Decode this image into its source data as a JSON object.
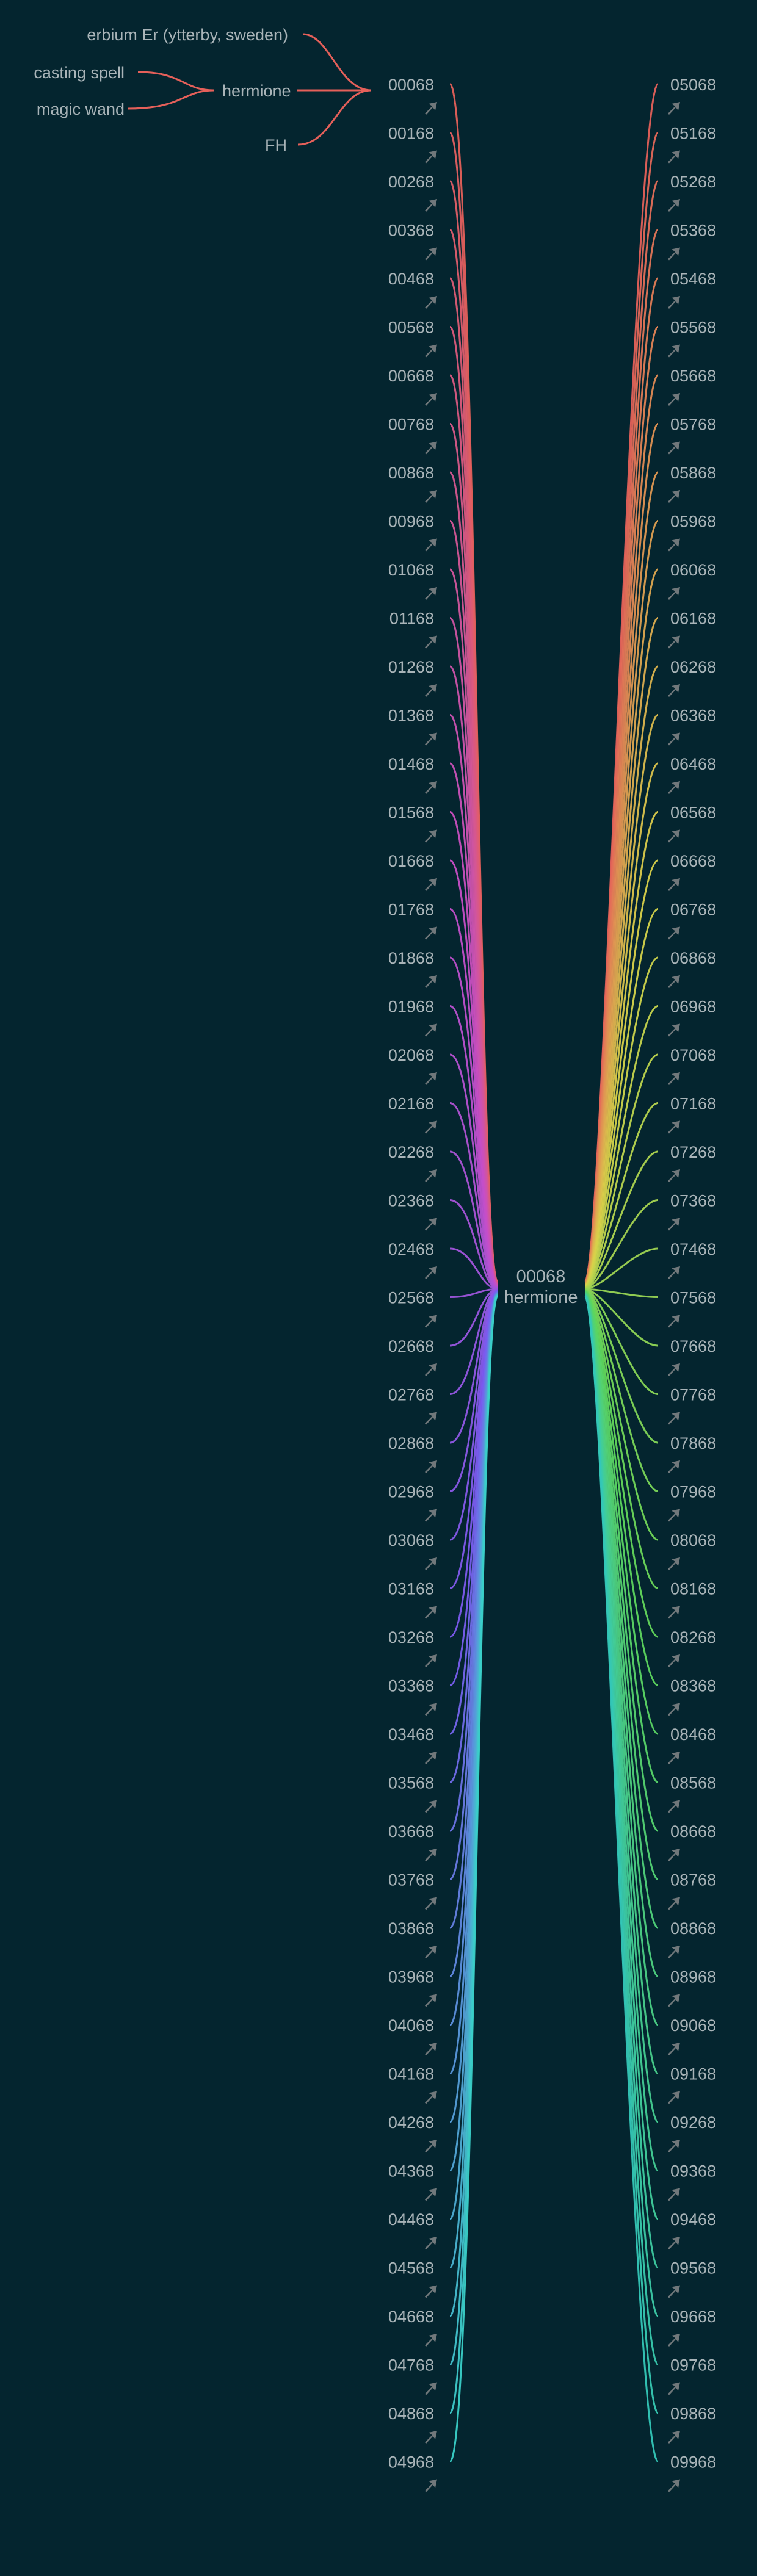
{
  "source_tree": {
    "root": "00068",
    "parent": "hermione",
    "parent_inputs": [
      "erbium Er (ytterby, sweden)",
      "casting spell",
      "magic wand",
      "FH"
    ],
    "sub_inputs": [
      "casting spell",
      "magic wand"
    ]
  },
  "hub": {
    "id": "00068",
    "name": "hermione"
  },
  "left_items": [
    "00068",
    "00168",
    "00268",
    "00368",
    "00468",
    "00568",
    "00668",
    "00768",
    "00868",
    "00968",
    "01068",
    "01168",
    "01268",
    "01368",
    "01468",
    "01568",
    "01668",
    "01768",
    "01868",
    "01968",
    "02068",
    "02168",
    "02268",
    "02368",
    "02468",
    "02568",
    "02668",
    "02768",
    "02868",
    "02968",
    "03068",
    "03168",
    "03268",
    "03368",
    "03468",
    "03568",
    "03668",
    "03768",
    "03868",
    "03968",
    "04068",
    "04168",
    "04268",
    "04368",
    "04468",
    "04568",
    "04668",
    "04768",
    "04868",
    "04968"
  ],
  "right_items": [
    "05068",
    "05168",
    "05268",
    "05368",
    "05468",
    "05568",
    "05668",
    "05768",
    "05868",
    "05968",
    "06068",
    "06168",
    "06268",
    "06368",
    "06468",
    "06568",
    "06668",
    "06768",
    "06868",
    "06968",
    "07068",
    "07168",
    "07268",
    "07368",
    "07468",
    "07568",
    "07668",
    "07768",
    "07868",
    "07968",
    "08068",
    "08168",
    "08268",
    "08368",
    "08468",
    "08568",
    "08668",
    "08768",
    "08868",
    "08968",
    "09068",
    "09168",
    "09268",
    "09368",
    "09468",
    "09568",
    "09668",
    "09768",
    "09868",
    "09968"
  ],
  "colors": {
    "background": "#04252f",
    "text": "#a9b4b8",
    "arrow": "#71787b",
    "tree_line": "#e5605a",
    "left_gradient": [
      "#e5605a",
      "#c64ec8",
      "#7a5bf0",
      "#3ad0c8"
    ],
    "right_gradient": [
      "#e5605a",
      "#d9d34a",
      "#5ed65c",
      "#34c7b8"
    ]
  },
  "icons": {
    "row_marker": "arrow-icon"
  }
}
